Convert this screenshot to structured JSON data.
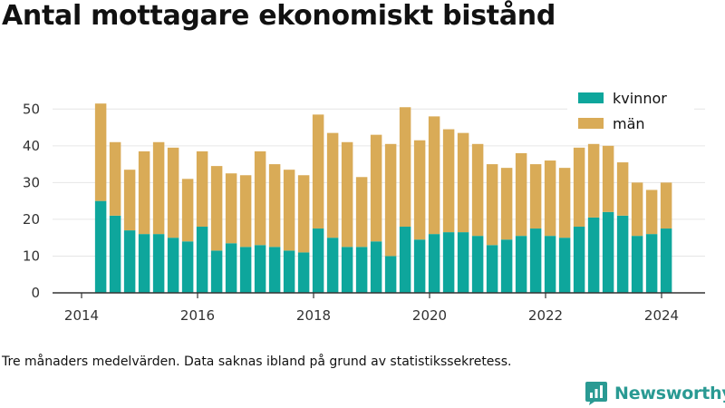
{
  "title": "Antal mottagare ekonomiskt bistånd",
  "note": "Tre månaders medelvärden. Data saknas ibland på grund av statistikssekretess.",
  "brand": {
    "name": "Newsworthy",
    "icon": "newsworthy-logo-icon",
    "color": "#2a9a93"
  },
  "chart_data": {
    "type": "bar",
    "stacked": true,
    "title": "Antal mottagare ekonomiskt bistånd",
    "xlabel": "",
    "ylabel": "",
    "x": [
      2014.33,
      2014.58,
      2014.83,
      2015.08,
      2015.33,
      2015.58,
      2015.83,
      2016.08,
      2016.33,
      2016.58,
      2016.83,
      2017.08,
      2017.33,
      2017.58,
      2017.83,
      2018.08,
      2018.33,
      2018.58,
      2018.83,
      2019.08,
      2019.33,
      2019.58,
      2019.83,
      2020.08,
      2020.33,
      2020.58,
      2020.83,
      2021.08,
      2021.33,
      2021.58,
      2021.83,
      2022.08,
      2022.33,
      2022.58,
      2022.83,
      2023.08,
      2023.33,
      2023.58,
      2023.83,
      2024.08
    ],
    "series": [
      {
        "name": "kvinnor",
        "color": "#0ea69c",
        "values": [
          25,
          21,
          17,
          16,
          16,
          15,
          14,
          18,
          11.5,
          13.5,
          12.5,
          13,
          12.5,
          11.5,
          11,
          17.5,
          15,
          12.5,
          12.5,
          14,
          10,
          18,
          14.5,
          16,
          16.5,
          16.5,
          15.5,
          13,
          14.5,
          15.5,
          17.5,
          15.5,
          15,
          18,
          20.5,
          22,
          21,
          15.5,
          16,
          17.5
        ]
      },
      {
        "name": "män",
        "color": "#d9ab57",
        "values": [
          26.5,
          20,
          16.5,
          22.5,
          25,
          24.5,
          17,
          20.5,
          23,
          19,
          19.5,
          25.5,
          22.5,
          22,
          21,
          31,
          28.5,
          28.5,
          19,
          29,
          30.5,
          32.5,
          27,
          32,
          28,
          27,
          25,
          22,
          19.5,
          22.5,
          17.5,
          20.5,
          19,
          21.5,
          20,
          18,
          14.5,
          14.5,
          12,
          12.5
        ]
      }
    ],
    "xlim": [
      2013.5,
      2024.75
    ],
    "ylim": [
      0,
      55
    ],
    "yticks": [
      0,
      10,
      20,
      30,
      40,
      50
    ],
    "xticks": [
      2014,
      2016,
      2018,
      2020,
      2022,
      2024
    ],
    "grid": "horizontal",
    "legend": "top-right"
  }
}
